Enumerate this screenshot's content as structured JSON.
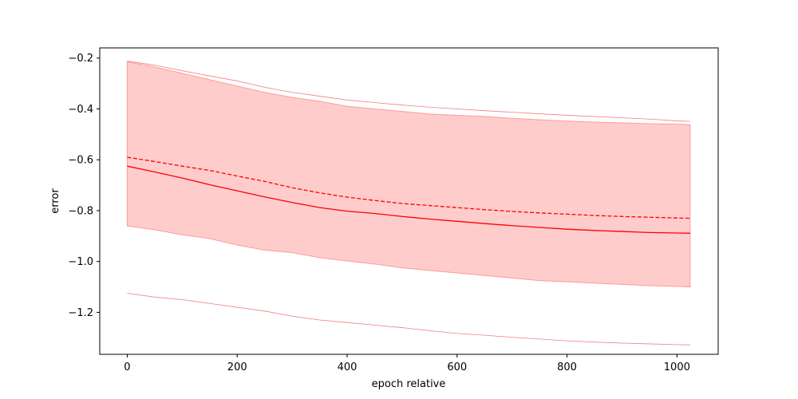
{
  "chart_data": {
    "type": "line",
    "title": "",
    "xlabel": "epoch relative",
    "ylabel": "error",
    "xlim": [
      -50,
      1075
    ],
    "ylim": [
      -1.365,
      -0.16
    ],
    "x_ticks": [
      0,
      200,
      400,
      600,
      800,
      1000
    ],
    "x_tick_labels": [
      "0",
      "200",
      "400",
      "600",
      "800",
      "1000"
    ],
    "y_ticks": [
      -1.2,
      -1.0,
      -0.8,
      -0.6,
      -0.4,
      -0.2
    ],
    "y_tick_labels": [
      "−1.2",
      "−1.0",
      "−0.8",
      "−0.6",
      "−0.4",
      "−0.2"
    ],
    "grid": false,
    "legend": "none",
    "x": [
      0,
      50,
      100,
      150,
      200,
      250,
      300,
      350,
      400,
      450,
      500,
      550,
      600,
      650,
      700,
      750,
      800,
      850,
      900,
      950,
      1000,
      1024
    ],
    "series": [
      {
        "role": "mean",
        "style": "solid",
        "color": "#ff0000",
        "values": [
          -0.625,
          -0.648,
          -0.672,
          -0.698,
          -0.722,
          -0.746,
          -0.768,
          -0.788,
          -0.802,
          -0.811,
          -0.823,
          -0.833,
          -0.842,
          -0.851,
          -0.859,
          -0.866,
          -0.873,
          -0.878,
          -0.882,
          -0.886,
          -0.888,
          -0.889
        ]
      },
      {
        "role": "median",
        "style": "dashed",
        "color": "#ff0000",
        "values": [
          -0.59,
          -0.607,
          -0.625,
          -0.642,
          -0.664,
          -0.685,
          -0.71,
          -0.73,
          -0.747,
          -0.76,
          -0.772,
          -0.78,
          -0.788,
          -0.796,
          -0.803,
          -0.809,
          -0.814,
          -0.819,
          -0.823,
          -0.826,
          -0.829,
          -0.83
        ]
      },
      {
        "role": "band_upper",
        "style": "fill",
        "color": "#ffcccc",
        "values": [
          -0.215,
          -0.235,
          -0.26,
          -0.285,
          -0.31,
          -0.335,
          -0.355,
          -0.37,
          -0.39,
          -0.4,
          -0.41,
          -0.42,
          -0.425,
          -0.43,
          -0.437,
          -0.443,
          -0.448,
          -0.452,
          -0.455,
          -0.458,
          -0.46,
          -0.462
        ]
      },
      {
        "role": "band_lower",
        "style": "fill",
        "color": "#ffcccc",
        "values": [
          -0.86,
          -0.875,
          -0.895,
          -0.91,
          -0.935,
          -0.955,
          -0.965,
          -0.985,
          -0.998,
          -1.01,
          -1.025,
          -1.035,
          -1.045,
          -1.055,
          -1.065,
          -1.075,
          -1.08,
          -1.085,
          -1.09,
          -1.095,
          -1.098,
          -1.1
        ]
      },
      {
        "role": "max",
        "style": "thin",
        "color": "#f08080",
        "values": [
          -0.212,
          -0.228,
          -0.25,
          -0.27,
          -0.29,
          -0.315,
          -0.335,
          -0.35,
          -0.365,
          -0.375,
          -0.385,
          -0.393,
          -0.4,
          -0.407,
          -0.413,
          -0.419,
          -0.425,
          -0.43,
          -0.435,
          -0.44,
          -0.447,
          -0.449
        ]
      },
      {
        "role": "min",
        "style": "thin",
        "color": "#f08080",
        "values": [
          -1.125,
          -1.14,
          -1.15,
          -1.165,
          -1.18,
          -1.195,
          -1.215,
          -1.23,
          -1.24,
          -1.25,
          -1.26,
          -1.272,
          -1.283,
          -1.29,
          -1.298,
          -1.305,
          -1.312,
          -1.317,
          -1.321,
          -1.324,
          -1.327,
          -1.328
        ]
      }
    ]
  }
}
